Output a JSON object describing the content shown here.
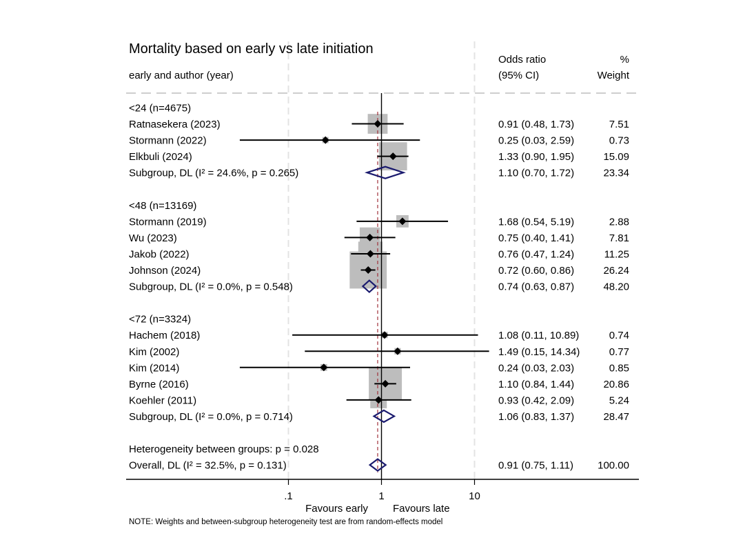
{
  "chart_data": {
    "type": "forest",
    "title": "Mortality based on early vs late initiation",
    "left_header": "early and author (year)",
    "col_headers": {
      "or_line1": "Odds ratio",
      "or_line2": "(95% CI)",
      "weight_line1": "%",
      "weight_line2": "Weight"
    },
    "xscale": "log",
    "xticks": [
      0.1,
      1,
      10
    ],
    "xtick_labels": [
      ".1",
      "1",
      "10"
    ],
    "xlim": [
      0.0175,
      43
    ],
    "null_line": 1,
    "overall_line": 0.91,
    "favours_left": "Favours early",
    "favours_right": "Favours late",
    "note": "NOTE: Weights and between-subgroup heterogeneity test are from random-effects model",
    "colors": {
      "marker": "#000000",
      "weight_box": "#bdbdbd",
      "diamond": "#1a1a6e",
      "overall_line": "#a0303a",
      "grid": "#e3e3e3"
    },
    "rows": [
      {
        "kind": "group",
        "label": "<24 (n=4675)"
      },
      {
        "kind": "study",
        "label": "Ratnasekera (2023)",
        "or": 0.91,
        "lo": 0.48,
        "hi": 1.73,
        "text": "0.91 (0.48, 1.73)",
        "weight": 7.51,
        "weight_text": "7.51"
      },
      {
        "kind": "study",
        "label": "Stormann (2022)",
        "or": 0.25,
        "lo": 0.03,
        "hi": 2.59,
        "text": "0.25 (0.03, 2.59)",
        "weight": 0.73,
        "weight_text": "0.73"
      },
      {
        "kind": "study",
        "label": "Elkbuli (2024)",
        "or": 1.33,
        "lo": 0.9,
        "hi": 1.95,
        "text": "1.33 (0.90, 1.95)",
        "weight": 15.09,
        "weight_text": "15.09"
      },
      {
        "kind": "subgroup",
        "label": "Subgroup, DL (I² = 24.6%, p = 0.265)",
        "or": 1.1,
        "lo": 0.7,
        "hi": 1.72,
        "text": "1.10 (0.70, 1.72)",
        "weight": 23.34,
        "weight_text": "23.34"
      },
      {
        "kind": "blank"
      },
      {
        "kind": "group",
        "label": "<48 (n=13169)"
      },
      {
        "kind": "study",
        "label": "Stormann (2019)",
        "or": 1.68,
        "lo": 0.54,
        "hi": 5.19,
        "text": "1.68 (0.54, 5.19)",
        "weight": 2.88,
        "weight_text": "2.88"
      },
      {
        "kind": "study",
        "label": "Wu (2023)",
        "or": 0.75,
        "lo": 0.4,
        "hi": 1.41,
        "text": "0.75 (0.40, 1.41)",
        "weight": 7.81,
        "weight_text": "7.81"
      },
      {
        "kind": "study",
        "label": "Jakob (2022)",
        "or": 0.76,
        "lo": 0.47,
        "hi": 1.24,
        "text": "0.76 (0.47, 1.24)",
        "weight": 11.25,
        "weight_text": "11.25"
      },
      {
        "kind": "study",
        "label": "Johnson (2024)",
        "or": 0.72,
        "lo": 0.6,
        "hi": 0.86,
        "text": "0.72 (0.60, 0.86)",
        "weight": 26.24,
        "weight_text": "26.24"
      },
      {
        "kind": "subgroup",
        "label": "Subgroup, DL (I² = 0.0%, p = 0.548)",
        "or": 0.74,
        "lo": 0.63,
        "hi": 0.87,
        "text": "0.74 (0.63, 0.87)",
        "weight": 48.2,
        "weight_text": "48.20"
      },
      {
        "kind": "blank"
      },
      {
        "kind": "group",
        "label": "<72 (n=3324)"
      },
      {
        "kind": "study",
        "label": "Hachem (2018)",
        "or": 1.08,
        "lo": 0.11,
        "hi": 10.89,
        "text": "1.08 (0.11, 10.89)",
        "weight": 0.74,
        "weight_text": "0.74"
      },
      {
        "kind": "study",
        "label": "Kim (2002)",
        "or": 1.49,
        "lo": 0.15,
        "hi": 14.34,
        "text": "1.49 (0.15, 14.34)",
        "weight": 0.77,
        "weight_text": "0.77"
      },
      {
        "kind": "study",
        "label": "Kim (2014)",
        "or": 0.24,
        "lo": 0.03,
        "hi": 2.03,
        "text": "0.24 (0.03, 2.03)",
        "weight": 0.85,
        "weight_text": "0.85"
      },
      {
        "kind": "study",
        "label": "Byrne (2016)",
        "or": 1.1,
        "lo": 0.84,
        "hi": 1.44,
        "text": "1.10 (0.84, 1.44)",
        "weight": 20.86,
        "weight_text": "20.86"
      },
      {
        "kind": "study",
        "label": "Koehler (2011)",
        "or": 0.93,
        "lo": 0.42,
        "hi": 2.09,
        "text": "0.93 (0.42, 2.09)",
        "weight": 5.24,
        "weight_text": "5.24"
      },
      {
        "kind": "subgroup",
        "label": "Subgroup, DL (I² = 0.0%, p = 0.714)",
        "or": 1.06,
        "lo": 0.83,
        "hi": 1.37,
        "text": "1.06 (0.83, 1.37)",
        "weight": 28.47,
        "weight_text": "28.47"
      },
      {
        "kind": "blank"
      },
      {
        "kind": "note",
        "label": "Heterogeneity between groups: p = 0.028"
      },
      {
        "kind": "overall",
        "label": "Overall, DL (I² = 32.5%, p = 0.131)",
        "or": 0.91,
        "lo": 0.75,
        "hi": 1.11,
        "text": "0.91 (0.75, 1.11)",
        "weight": 100.0,
        "weight_text": "100.00"
      }
    ]
  }
}
